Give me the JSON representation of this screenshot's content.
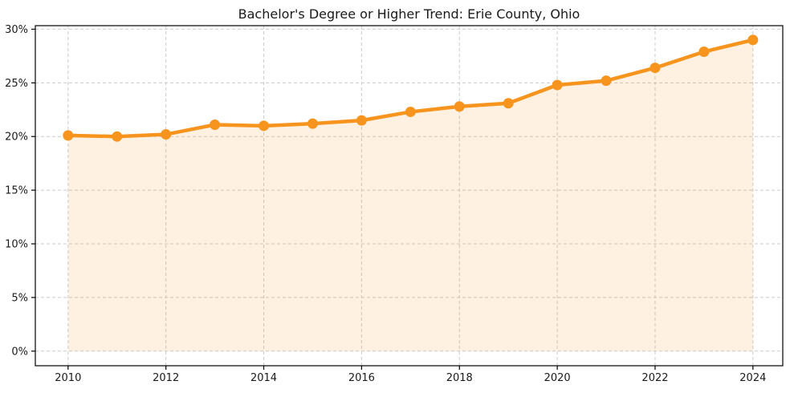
{
  "chart_data": {
    "type": "line",
    "title": "Bachelor's Degree or Higher Trend: Erie County, Ohio",
    "series_name": "Bachelor's degree or higher (%)",
    "x": [
      2010,
      2011,
      2012,
      2013,
      2014,
      2015,
      2016,
      2017,
      2018,
      2019,
      2020,
      2021,
      2022,
      2023,
      2024
    ],
    "values": [
      20.1,
      20.0,
      20.2,
      21.1,
      21.0,
      21.2,
      21.5,
      22.3,
      22.8,
      23.1,
      24.8,
      25.2,
      26.4,
      27.9,
      29.0
    ],
    "x_ticks": [
      2010,
      2012,
      2014,
      2016,
      2018,
      2020,
      2022,
      2024
    ],
    "x_tick_labels": [
      "2010",
      "2012",
      "2014",
      "2016",
      "2018",
      "2020",
      "2022",
      "2024"
    ],
    "y_ticks": [
      0,
      5,
      10,
      15,
      20,
      25,
      30
    ],
    "y_tick_labels": [
      "0%",
      "5%",
      "10%",
      "15%",
      "20%",
      "25%",
      "30%"
    ],
    "xlim": [
      2009.33,
      2024.61
    ],
    "ylim": [
      -1.36,
      30.33
    ],
    "xlabel": "",
    "ylabel": "",
    "grid": true,
    "grid_style": "dashed",
    "legend": "none",
    "marker": "circle",
    "area_fill_to": 0
  },
  "style": {
    "line_color": "#F7941E",
    "marker_color": "#F7941E",
    "area_fill_color": "rgba(247,148,30,0.13)",
    "grid_color": "#cbcbcb",
    "spine_color": "#000000",
    "tick_color": "#000000",
    "text_color": "#1a1a1a",
    "background_color": "#ffffff"
  }
}
